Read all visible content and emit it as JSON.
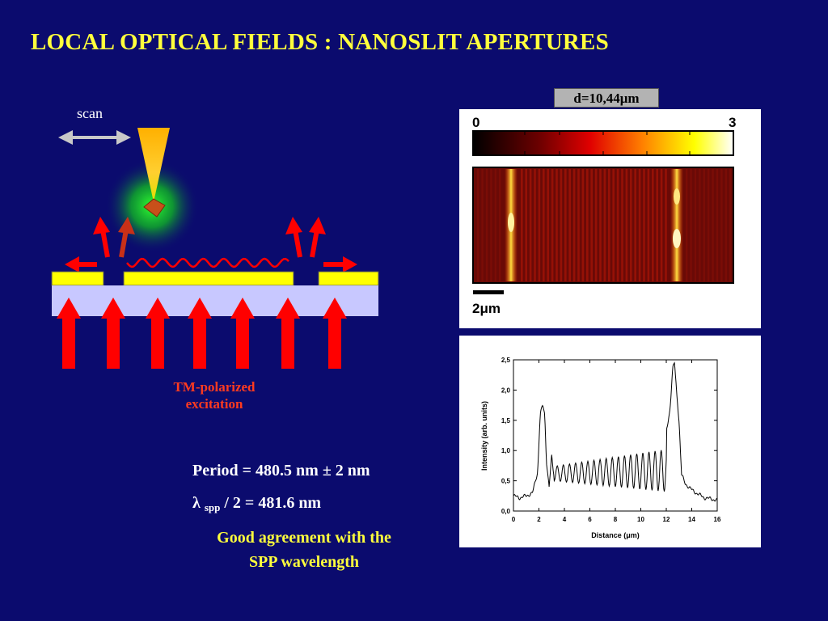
{
  "title": "LOCAL OPTICAL FIELDS : NANOSLIT APERTURES",
  "diagram": {
    "scan_label": "scan",
    "excitation_label_line1": "TM-polarized",
    "excitation_label_line2": "excitation"
  },
  "results": {
    "period": "Period = 480.5 nm ± 2 nm",
    "lambda_symbol": "λ",
    "lambda_sub": "spp",
    "lambda_rest": " / 2 = 481.6 nm",
    "agreement_line1": "Good agreement with the",
    "agreement_line2": "SPP wavelength"
  },
  "image_panel": {
    "distance_badge": "d=10,44μm",
    "colorbar_min": "0",
    "colorbar_max": "3",
    "scalebar_label": "2μm"
  },
  "chart_data": {
    "type": "line",
    "xlabel": "Distance (μm)",
    "ylabel": "Intensity (arb. units)",
    "xlim": [
      0,
      16
    ],
    "ylim": [
      0,
      2.5
    ],
    "xticks": [
      "0",
      "2",
      "4",
      "6",
      "8",
      "10",
      "12",
      "14",
      "16"
    ],
    "yticks": [
      "0,0",
      "0,5",
      "1,0",
      "1,5",
      "2,0",
      "2,5"
    ],
    "series": [
      {
        "x": [
          0,
          0.5,
          1.0,
          1.5,
          1.9,
          2.1,
          2.3,
          2.45,
          2.6,
          2.8,
          3.0,
          3.2,
          12.0,
          12.3,
          12.5,
          12.65,
          12.8,
          13.0,
          13.2,
          13.5,
          14.0,
          14.5,
          15.0,
          15.5,
          16.0
        ],
        "y": [
          0.25,
          0.22,
          0.25,
          0.3,
          0.65,
          1.6,
          1.75,
          1.6,
          0.8,
          0.4,
          0.9,
          0.55,
          1.3,
          1.7,
          2.35,
          2.45,
          2.0,
          1.5,
          0.6,
          0.45,
          0.35,
          0.28,
          0.22,
          0.2,
          0.18
        ]
      }
    ],
    "fringe_period_um": 0.48,
    "fringe_center_level": 0.62,
    "fringe_amplitude_start": 0.12,
    "fringe_amplitude_end": 0.35
  },
  "colors": {
    "background": "#0b0b6e",
    "title": "#ffff3c",
    "arrow_red": "#ff0000",
    "gold_film": "#ffff00",
    "substrate": "#c8c8ff",
    "wave": "#ff0000",
    "tip": "#ffb300",
    "glow": "#18ff30"
  }
}
